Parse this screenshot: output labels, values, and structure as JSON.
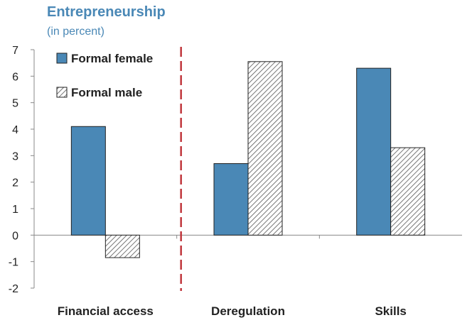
{
  "chart_data": {
    "type": "bar",
    "title": "Entrepreneurship",
    "subtitle": "(in percent)",
    "categories": [
      "Financial access",
      "Deregulation",
      "Skills"
    ],
    "series": [
      {
        "name": "Formal female",
        "values": [
          4.1,
          2.7,
          6.3
        ],
        "style": "solid"
      },
      {
        "name": "Formal male",
        "values": [
          -0.85,
          6.55,
          3.3
        ],
        "style": "hatched"
      }
    ],
    "ylim": [
      -2,
      7
    ],
    "yticks": [
      7,
      6,
      5,
      4,
      3,
      2,
      1,
      0,
      -1,
      -2
    ],
    "grid": false,
    "legend_position": "top-left",
    "divider": "dashed vertical line between Financial access and Deregulation"
  },
  "colors": {
    "title": "#4a88b6",
    "female_fill": "#4a88b6",
    "male_hatch": "#555555",
    "divider": "#c0363c",
    "divider_glow": "#f2b4b4"
  }
}
